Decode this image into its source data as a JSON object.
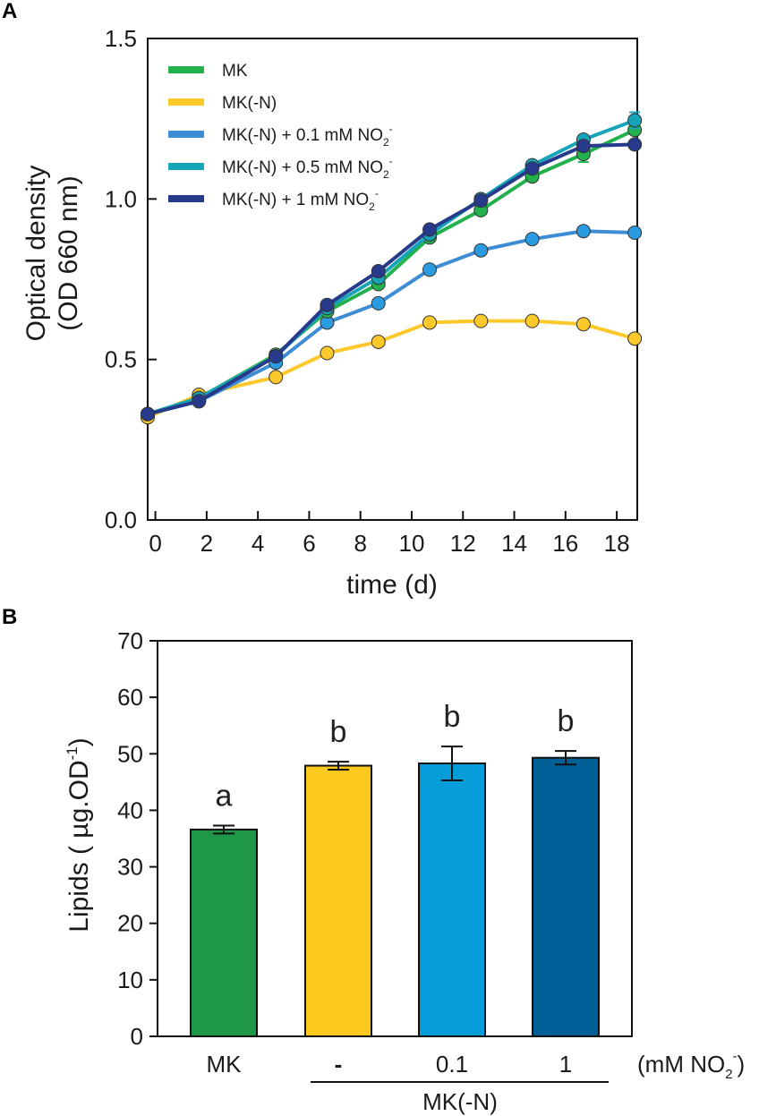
{
  "chart_data": [
    {
      "panel": "A",
      "type": "line",
      "title": "",
      "xlabel": "time (d)",
      "ylabel_line1": "Optical density",
      "ylabel_line2": "(OD 660 nm)",
      "xlim": [
        -0.3,
        18.8
      ],
      "ylim": [
        0,
        1.5
      ],
      "xticks": [
        0,
        2,
        4,
        6,
        8,
        10,
        12,
        14,
        16,
        18
      ],
      "yticks": [
        0.0,
        0.5,
        1.0,
        1.5
      ],
      "ytick_labels": [
        "0.0",
        "0.5",
        "1.0",
        "1.5"
      ],
      "legend_position": "top-left",
      "x": [
        -0.3,
        1.7,
        4.7,
        6.7,
        8.7,
        10.7,
        12.7,
        14.7,
        16.7,
        18.7
      ],
      "series": [
        {
          "name": "MK",
          "base": "MK",
          "suffix": "",
          "color": "#22b14c",
          "values": [
            0.33,
            0.38,
            0.515,
            0.65,
            0.735,
            0.88,
            0.965,
            1.07,
            1.14,
            1.215
          ],
          "errors": [
            0,
            0,
            0,
            0,
            0,
            0,
            0,
            0,
            0.025,
            0
          ]
        },
        {
          "name": "MK(-N)",
          "base": "MK(-N)",
          "suffix": "",
          "color": "#fcc82a",
          "values": [
            0.32,
            0.39,
            0.445,
            0.52,
            0.555,
            0.615,
            0.62,
            0.62,
            0.61,
            0.565
          ],
          "errors": [
            0,
            0,
            0,
            0,
            0,
            0,
            0,
            0,
            0,
            0
          ]
        },
        {
          "name": "MK(-N) + 0.1 mM NO2-",
          "base": "MK(-N) + 0.1 mM NO",
          "suffix": "2",
          "sup": "-",
          "color": "#2a9be0",
          "line_color": "#3c8dd6",
          "values": [
            0.33,
            0.37,
            0.49,
            0.615,
            0.675,
            0.78,
            0.84,
            0.875,
            0.9,
            0.895
          ],
          "errors": [
            0,
            0,
            0,
            0,
            0,
            0,
            0,
            0,
            0,
            0
          ]
        },
        {
          "name": "MK(-N) + 0.5 mM NO2-",
          "base": "MK(-N) + 0.5 mM  NO",
          "suffix": "2",
          "sup": "-",
          "color": "#17a4b8",
          "values": [
            0.33,
            0.38,
            0.51,
            0.66,
            0.755,
            0.89,
            1.0,
            1.105,
            1.185,
            1.245
          ],
          "errors": [
            0,
            0,
            0,
            0,
            0,
            0,
            0,
            0,
            0,
            0.025
          ]
        },
        {
          "name": "MK(-N) + 1 mM NO2-",
          "base": "MK(-N) + 1 mM  NO",
          "suffix": "2",
          "sup": "-",
          "color": "#283a8c",
          "values": [
            0.33,
            0.37,
            0.51,
            0.67,
            0.775,
            0.905,
            0.995,
            1.095,
            1.165,
            1.17
          ],
          "errors": [
            0,
            0,
            0,
            0,
            0,
            0,
            0,
            0,
            0,
            0
          ]
        }
      ]
    },
    {
      "panel": "B",
      "type": "bar",
      "title": "",
      "ylabel_base": "Lipids ( µg.OD",
      "ylabel_sup": "-1",
      "ylabel_end": ")",
      "ylim": [
        0,
        70
      ],
      "yticks": [
        0,
        10,
        20,
        30,
        40,
        50,
        60,
        70
      ],
      "categories": [
        "MK",
        "-",
        "0.1",
        "1"
      ],
      "values": [
        36.6,
        47.9,
        48.3,
        49.3
      ],
      "errors": [
        0.7,
        0.7,
        3.0,
        1.2
      ],
      "colors": [
        "#1e9746",
        "#fdc91f",
        "#049dd9",
        "#015f98"
      ],
      "significance": [
        "a",
        "b",
        "b",
        "b"
      ],
      "unit_label_base": "(mM NO",
      "unit_label_sub": "2",
      "unit_label_sup": "-",
      "unit_label_end": ")",
      "group_label": "MK(-N)"
    }
  ]
}
